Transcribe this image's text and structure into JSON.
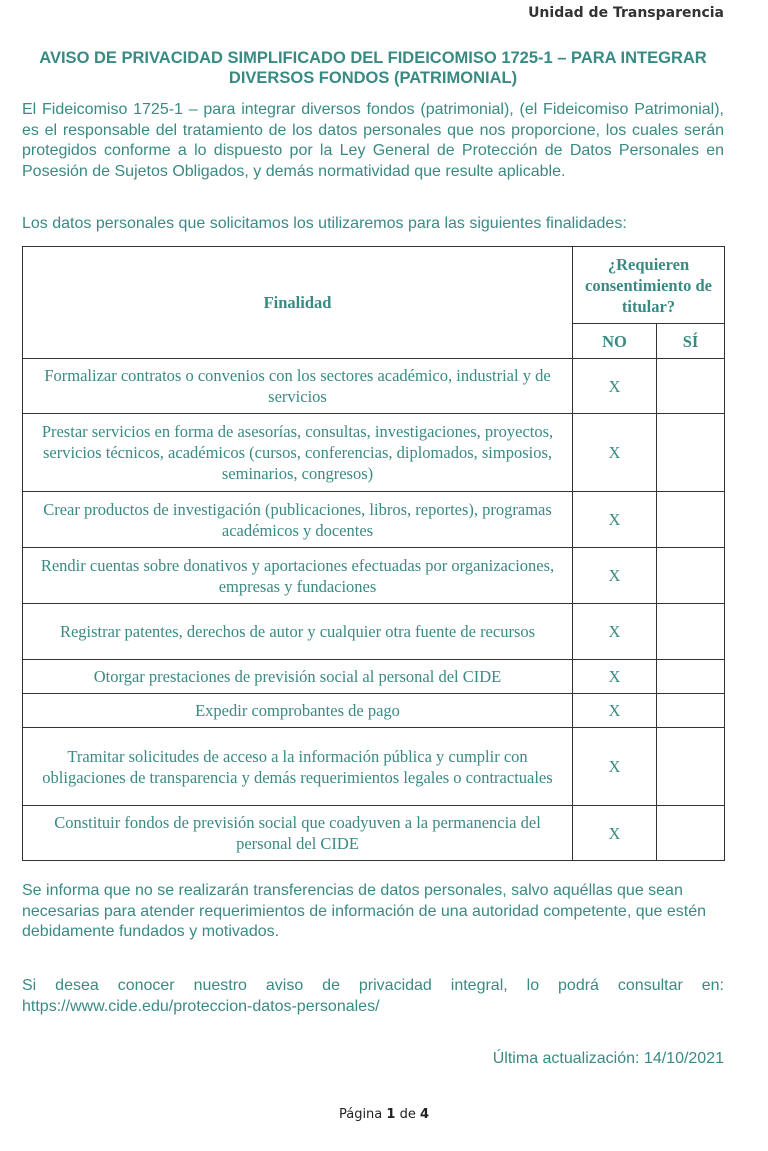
{
  "header": "Unidad de Transparencia",
  "title": "AVISO DE PRIVACIDAD SIMPLIFICADO DEL FIDEICOMISO 1725-1 – PARA INTEGRAR DIVERSOS FONDOS (PATRIMONIAL)",
  "intro": "El Fideicomiso 1725-1 – para integrar diversos fondos (patrimonial), (el Fideicomiso Patrimonial), es el responsable del tratamiento de los datos personales que nos proporcione, los cuales serán protegidos conforme a lo dispuesto por la Ley General de Protección de Datos Personales en Posesión de Sujetos Obligados, y demás normatividad que resulte aplicable.",
  "lead": "Los datos personales que solicitamos los utilizaremos para las siguientes finalidades:",
  "table": {
    "col_finalidad": "Finalidad",
    "col_consent": "¿Requieren consentimiento de titular?",
    "col_no": "NO",
    "col_si": "SÍ",
    "rows": [
      {
        "text": "Formalizar contratos o convenios con los sectores académico, industrial y de servicios",
        "no": "X",
        "si": ""
      },
      {
        "text": "Prestar servicios en forma de asesorías, consultas, investigaciones, proyectos, servicios técnicos, académicos (cursos, conferencias, diplomados, simposios, seminarios, congresos)",
        "no": "X",
        "si": ""
      },
      {
        "text": "Crear productos de investigación (publicaciones, libros, reportes), programas académicos y docentes",
        "no": "X",
        "si": ""
      },
      {
        "text": "Rendir cuentas sobre donativos y aportaciones efectuadas por organizaciones, empresas y fundaciones",
        "no": "X",
        "si": ""
      },
      {
        "text": "Registrar patentes, derechos de autor y cualquier otra fuente de recursos",
        "no": "X",
        "si": ""
      },
      {
        "text": "Otorgar prestaciones de previsión social al personal del CIDE",
        "no": "X",
        "si": ""
      },
      {
        "text": "Expedir comprobantes de pago",
        "no": "X",
        "si": ""
      },
      {
        "text": "Tramitar solicitudes de acceso a la información pública y cumplir con obligaciones de transparencia y demás requerimientos legales o contractuales",
        "no": "X",
        "si": ""
      },
      {
        "text": "Constituir fondos de previsión social que coadyuven a la permanencia del personal del CIDE",
        "no": "X",
        "si": ""
      }
    ]
  },
  "transfer": "Se informa que no se realizarán transferencias de datos personales, salvo aquéllas que sean necesarias para atender requerimientos de información de una autoridad competente, que estén debidamente fundados y motivados.",
  "integral": "Si desea conocer nuestro aviso de privacidad integral, lo podrá consultar en: https://www.cide.edu/proteccion-datos-personales/",
  "updated": "Última actualización: 14/10/2021",
  "footer": {
    "prefix": "Página ",
    "page": "1",
    "mid": " de ",
    "total": "4"
  }
}
